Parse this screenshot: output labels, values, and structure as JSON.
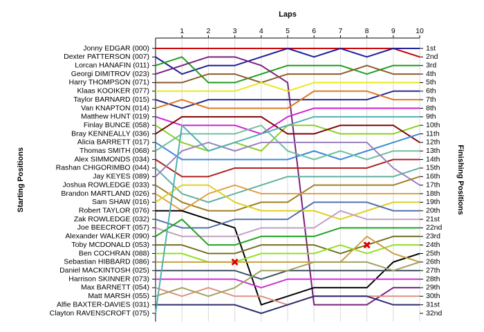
{
  "chart_data": {
    "type": "line",
    "title": "Laps",
    "y_label": "Starting Positions",
    "y2_label": "Finishing Positions",
    "x": [
      0,
      1,
      2,
      3,
      4,
      5,
      6,
      7,
      8,
      9,
      10
    ],
    "xlim": [
      0,
      10
    ],
    "xticks": [
      1,
      2,
      3,
      4,
      5,
      6,
      7,
      8,
      9,
      10
    ],
    "ylim": [
      1,
      32
    ],
    "invert_y": true,
    "grid": true,
    "yticks": [
      {
        "value": 1,
        "label": "1st"
      },
      {
        "value": 2,
        "label": "2nd"
      },
      {
        "value": 3,
        "label": "3rd"
      },
      {
        "value": 4,
        "label": "4th"
      },
      {
        "value": 5,
        "label": "5th"
      },
      {
        "value": 6,
        "label": "6th"
      },
      {
        "value": 7,
        "label": "7th"
      },
      {
        "value": 8,
        "label": "8th"
      },
      {
        "value": 9,
        "label": "9th"
      },
      {
        "value": 10,
        "label": "10th"
      },
      {
        "value": 11,
        "label": "11th"
      },
      {
        "value": 12,
        "label": "12th"
      },
      {
        "value": 13,
        "label": "13th"
      },
      {
        "value": 14,
        "label": "14th"
      },
      {
        "value": 15,
        "label": "15th"
      },
      {
        "value": 16,
        "label": "16th"
      },
      {
        "value": 17,
        "label": "17th"
      },
      {
        "value": 18,
        "label": "18th"
      },
      {
        "value": 19,
        "label": "19th"
      },
      {
        "value": 20,
        "label": "20th"
      },
      {
        "value": 21,
        "label": "21st"
      },
      {
        "value": 22,
        "label": "22nd"
      },
      {
        "value": 23,
        "label": "23rd"
      },
      {
        "value": 24,
        "label": "24th"
      },
      {
        "value": 25,
        "label": "25th"
      },
      {
        "value": 26,
        "label": "26th"
      },
      {
        "value": 27,
        "label": "27th"
      },
      {
        "value": 28,
        "label": "28th"
      },
      {
        "value": 29,
        "label": "29th"
      },
      {
        "value": 30,
        "label": "30th"
      },
      {
        "value": 31,
        "label": "31st"
      },
      {
        "value": 32,
        "label": "32nd"
      }
    ],
    "series": [
      {
        "name": "Jonny EDGAR (000)",
        "color": "#cc0000",
        "values": [
          1,
          1,
          1,
          1,
          1,
          1,
          1,
          1,
          1,
          1,
          2
        ]
      },
      {
        "name": "Dexter PATTERSON (007)",
        "color": "#1c1c9c",
        "values": [
          2,
          4,
          3,
          3,
          2,
          1,
          2,
          1,
          2,
          1,
          1
        ]
      },
      {
        "name": "Lorcan HANAFIN (011)",
        "color": "#1e9e1e",
        "values": [
          3,
          2,
          5,
          5,
          4,
          3,
          3,
          3,
          4,
          3,
          3
        ]
      },
      {
        "name": "Georgi DIMITROV (023)",
        "color": "#7a1f7a",
        "values": [
          4,
          3,
          2,
          2,
          3,
          5,
          31,
          31,
          31,
          29,
          29
        ]
      },
      {
        "name": "Harry THOMPSON (071)",
        "color": "#8c5a2a",
        "values": [
          5,
          5,
          4,
          4,
          5,
          4,
          4,
          4,
          3,
          4,
          4
        ]
      },
      {
        "name": "Klaas KOOIKER (077)",
        "color": "#e8e820",
        "values": [
          6,
          6,
          6,
          6,
          5,
          6,
          5,
          5,
          5,
          5,
          5
        ]
      },
      {
        "name": "Taylor BARNARD (015)",
        "color": "#2a2a8c",
        "values": [
          7,
          8,
          7,
          7,
          7,
          7,
          7,
          7,
          7,
          6,
          6
        ]
      },
      {
        "name": "Van KNAPTON (014)",
        "color": "#e07820",
        "values": [
          8,
          7,
          8,
          8,
          8,
          8,
          6,
          6,
          6,
          7,
          7
        ]
      },
      {
        "name": "Matthew HUNT (019)",
        "color": "#d020d0",
        "values": [
          9,
          10,
          10,
          10,
          11,
          9,
          8,
          8,
          8,
          8,
          8
        ]
      },
      {
        "name": "Finlay BUNCE (058)",
        "color": "#8ad020",
        "values": [
          10,
          12,
          13,
          12,
          13,
          10,
          10,
          11,
          11,
          11,
          10
        ]
      },
      {
        "name": "Bray KENNEALLY (036)",
        "color": "#800000",
        "values": [
          11,
          9,
          9,
          9,
          9,
          11,
          11,
          10,
          10,
          10,
          12
        ]
      },
      {
        "name": "Alicia BARRETT (017)",
        "color": "#3a8ad8",
        "values": [
          12,
          14,
          14,
          14,
          14,
          14,
          13,
          14,
          13,
          12,
          11
        ]
      },
      {
        "name": "Thomas SMITH (068)",
        "color": "#70c0a0",
        "values": [
          13,
          11,
          11,
          11,
          10,
          13,
          14,
          13,
          14,
          13,
          13
        ]
      },
      {
        "name": "Alex SIMMONDS (034)",
        "color": "#b02020",
        "values": [
          14,
          16,
          16,
          15,
          15,
          15,
          15,
          15,
          15,
          14,
          14
        ]
      },
      {
        "name": "Rashan CHIGORIMBO (044)",
        "color": "#60b0a0",
        "values": [
          15,
          18,
          19,
          18,
          17,
          16,
          16,
          16,
          16,
          16,
          15
        ]
      },
      {
        "name": "Jay KEYES (089)",
        "color": "#9a80c0",
        "values": [
          16,
          13,
          12,
          13,
          12,
          12,
          12,
          12,
          12,
          15,
          17
        ]
      },
      {
        "name": "Joshua ROWLEDGE (033)",
        "color": "#a08020",
        "values": [
          17,
          19,
          20,
          20,
          19,
          19,
          17,
          17,
          17,
          17,
          16
        ]
      },
      {
        "name": "Brandon MARTLAND (026)",
        "color": "#e0a040",
        "values": [
          18,
          20,
          18,
          17,
          18,
          18,
          18,
          18,
          18,
          18,
          18
        ]
      },
      {
        "name": "Sam SHAW (016)",
        "color": "#e0d020",
        "values": [
          19,
          17,
          17,
          19,
          20,
          20,
          20,
          21,
          20,
          19,
          19
        ]
      },
      {
        "name": "Robert TAYLOR (076)",
        "color": "#000000",
        "values": [
          20,
          20,
          21,
          22,
          31,
          30,
          29,
          29,
          29,
          26,
          25
        ]
      },
      {
        "name": "Zak ROWLEDGE (032)",
        "color": "#5070b0",
        "values": [
          21,
          22,
          22,
          21,
          21,
          21,
          19,
          19,
          19,
          20,
          20
        ]
      },
      {
        "name": "Joe BEECROFT (057)",
        "color": "#c0a0c0",
        "values": [
          22,
          23,
          23,
          23,
          22,
          22,
          22,
          20,
          21,
          21,
          21
        ]
      },
      {
        "name": "Alexander WALKER (090)",
        "color": "#20a020",
        "values": [
          23,
          21,
          24,
          24,
          23,
          23,
          23,
          22,
          22,
          22,
          22
        ]
      },
      {
        "name": "Toby MCDONALD (053)",
        "color": "#707020",
        "values": [
          24,
          24,
          25,
          25,
          24,
          24,
          24,
          25,
          24,
          23,
          23
        ]
      },
      {
        "name": "Ben COCHRAN (088)",
        "color": "#90e020",
        "values": [
          25,
          25,
          26,
          26,
          25,
          25,
          25,
          24,
          25,
          24,
          24
        ]
      },
      {
        "name": "Sebastian HIBBARD (086)",
        "color": "#c8a040",
        "values": [
          26,
          26,
          26,
          26,
          26,
          26,
          26,
          26,
          23,
          25,
          26
        ]
      },
      {
        "name": "Daniel MACKINTOSH (025)",
        "color": "#405060",
        "values": [
          27,
          27,
          27,
          27,
          28,
          27,
          27,
          27,
          27,
          27,
          27
        ]
      },
      {
        "name": "Harrison SKINNER (073)",
        "color": "#d030d0",
        "values": [
          28,
          28,
          28,
          28,
          29,
          28,
          28,
          28,
          28,
          28,
          28
        ]
      },
      {
        "name": "Max BARNETT (054)",
        "color": "#e09080",
        "values": [
          29,
          30,
          29,
          30,
          30,
          31,
          30,
          30,
          30,
          30,
          30
        ]
      },
      {
        "name": "Matt MARSH (055)",
        "color": "#a0a060",
        "values": [
          30,
          29,
          30,
          29,
          27,
          27,
          26,
          26,
          26,
          27,
          26
        ]
      },
      {
        "name": "Alfie BAXTER-DAVIES (031)",
        "color": "#2a2a70",
        "values": [
          31,
          31,
          31,
          31,
          32,
          31,
          30,
          30,
          30,
          31,
          31
        ]
      },
      {
        "name": "Clayton RAVENSCROFT (075)",
        "color": "#50b0b0",
        "values": [
          32,
          10,
          13,
          12,
          11,
          10,
          9,
          9,
          9,
          9,
          9
        ]
      }
    ],
    "markers": [
      {
        "x": 3,
        "y": 26
      },
      {
        "x": 8,
        "y": 24
      }
    ]
  }
}
